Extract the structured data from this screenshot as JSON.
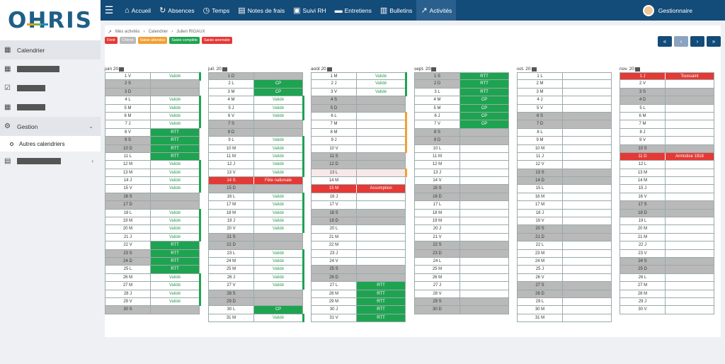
{
  "app": {
    "logo": "OHRIS"
  },
  "topnav": [
    {
      "icon": "home-icon",
      "glyph": "⌂",
      "label": "Accueil",
      "active": false
    },
    {
      "icon": "absences-icon",
      "glyph": "↻",
      "label": "Absences",
      "active": false
    },
    {
      "icon": "clock-icon",
      "glyph": "◷",
      "label": "Temps",
      "active": false
    },
    {
      "icon": "receipt-icon",
      "glyph": "▤",
      "label": "Notes de frais",
      "active": false
    },
    {
      "icon": "tracking-icon",
      "glyph": "▣",
      "label": "Suivi RH",
      "active": false
    },
    {
      "icon": "interview-icon",
      "glyph": "▬",
      "label": "Entretiens",
      "active": false
    },
    {
      "icon": "payslip-icon",
      "glyph": "▥",
      "label": "Bulletins",
      "active": false
    },
    {
      "icon": "activity-icon",
      "glyph": "↗",
      "label": "Activités",
      "active": true
    }
  ],
  "user": {
    "name": "Gestionnaire"
  },
  "sidebar": {
    "calendar_label": "Calendrier",
    "gestion_label": "Gestion",
    "sub_item": "Autres calendriers"
  },
  "breadcrumb": {
    "items": [
      "Mes activités",
      "Calendrier",
      "Julien RIGAUX"
    ]
  },
  "legend": [
    {
      "label": "Férié",
      "color": "#e53935"
    },
    {
      "label": "Chômé",
      "color": "#b9b9b9"
    },
    {
      "label": "Saisie attendue",
      "color": "#f0a035"
    },
    {
      "label": "Saisie complète",
      "color": "#1ea351"
    },
    {
      "label": "Saisie anomalie",
      "color": "#e53935"
    }
  ],
  "nav_buttons": [
    "«",
    "‹",
    "›",
    "»"
  ],
  "months": [
    {
      "title": "juin 20",
      "days": [
        [
          "1 V",
          "Validé",
          "ok",
          "g"
        ],
        [
          "2 S",
          "",
          "we",
          ""
        ],
        [
          "3 D",
          "",
          "we",
          ""
        ],
        [
          "4 L",
          "Validé",
          "ok",
          "g"
        ],
        [
          "5 M",
          "Validé",
          "ok",
          "g"
        ],
        [
          "6 M",
          "Validé",
          "ok",
          "g"
        ],
        [
          "7 J",
          "Validé",
          "ok",
          "g"
        ],
        [
          "8 V",
          "RTT",
          "g",
          ""
        ],
        [
          "9 S",
          "RTT",
          "we g",
          ""
        ],
        [
          "10 D",
          "RTT",
          "we g",
          ""
        ],
        [
          "11 L",
          "RTT",
          "g",
          ""
        ],
        [
          "12 M",
          "Validé",
          "ok",
          "g"
        ],
        [
          "13 M",
          "Validé",
          "ok",
          "g"
        ],
        [
          "14 J",
          "Validé",
          "ok",
          "g"
        ],
        [
          "15 V",
          "Validé",
          "ok",
          "g"
        ],
        [
          "16 S",
          "",
          "we",
          ""
        ],
        [
          "17 D",
          "",
          "we",
          ""
        ],
        [
          "18 L",
          "Validé",
          "ok",
          "g"
        ],
        [
          "19 M",
          "Validé",
          "ok",
          "g"
        ],
        [
          "20 M",
          "Validé",
          "ok",
          "g"
        ],
        [
          "21 J",
          "Validé",
          "ok",
          "g"
        ],
        [
          "22 V",
          "RTT",
          "g",
          ""
        ],
        [
          "23 S",
          "RTT",
          "we g",
          ""
        ],
        [
          "24 D",
          "RTT",
          "we g",
          ""
        ],
        [
          "25 L",
          "RTT",
          "g",
          ""
        ],
        [
          "26 M",
          "Validé",
          "ok",
          "g"
        ],
        [
          "27 M",
          "Validé",
          "ok",
          "g"
        ],
        [
          "28 J",
          "Validé",
          "ok",
          "g"
        ],
        [
          "29 V",
          "Validé",
          "ok",
          "g"
        ],
        [
          "30 S",
          "",
          "we",
          ""
        ]
      ]
    },
    {
      "title": "juil. 20",
      "days": [
        [
          "1 D",
          "",
          "we",
          ""
        ],
        [
          "2 L",
          "CP",
          "g",
          ""
        ],
        [
          "3 M",
          "CP",
          "g",
          ""
        ],
        [
          "4 M",
          "Validé",
          "ok",
          "g"
        ],
        [
          "5 J",
          "Validé",
          "ok",
          "g"
        ],
        [
          "6 V",
          "Validé",
          "ok",
          "g"
        ],
        [
          "7 S",
          "",
          "we",
          ""
        ],
        [
          "8 D",
          "",
          "we",
          ""
        ],
        [
          "9 L",
          "Validé",
          "ok",
          "g"
        ],
        [
          "10 M",
          "Validé",
          "ok",
          "g"
        ],
        [
          "11 M",
          "Validé",
          "ok",
          "g"
        ],
        [
          "12 J",
          "Validé",
          "ok",
          "g"
        ],
        [
          "13 V",
          "Validé",
          "ok",
          "g"
        ],
        [
          "14 S",
          "Fête nationale",
          "red",
          ""
        ],
        [
          "15 D",
          "",
          "we",
          ""
        ],
        [
          "16 L",
          "Validé",
          "ok",
          "g"
        ],
        [
          "17 M",
          "Validé",
          "ok",
          "g"
        ],
        [
          "18 M",
          "Validé",
          "ok",
          "g"
        ],
        [
          "19 J",
          "Validé",
          "ok",
          "g"
        ],
        [
          "20 V",
          "Validé",
          "ok",
          "g"
        ],
        [
          "21 S",
          "",
          "we",
          ""
        ],
        [
          "22 D",
          "",
          "we",
          ""
        ],
        [
          "23 L",
          "Validé",
          "ok",
          "g"
        ],
        [
          "24 M",
          "Validé",
          "ok",
          "g"
        ],
        [
          "25 M",
          "Validé",
          "ok",
          "g"
        ],
        [
          "26 J",
          "Validé",
          "ok",
          "g"
        ],
        [
          "27 V",
          "Validé",
          "ok",
          "g"
        ],
        [
          "28 S",
          "",
          "we",
          ""
        ],
        [
          "29 D",
          "",
          "we",
          ""
        ],
        [
          "30 L",
          "CP",
          "g",
          ""
        ],
        [
          "31 M",
          "Validé",
          "ok",
          "g"
        ]
      ]
    },
    {
      "title": "août 20",
      "days": [
        [
          "1 M",
          "Validé",
          "ok",
          "g"
        ],
        [
          "2 J",
          "Validé",
          "ok",
          "g"
        ],
        [
          "3 V",
          "Validé",
          "ok",
          "g"
        ],
        [
          "4 S",
          "",
          "we",
          ""
        ],
        [
          "5 D",
          "",
          "we",
          ""
        ],
        [
          "6 L",
          "",
          "",
          "o"
        ],
        [
          "7 M",
          "",
          "",
          "o"
        ],
        [
          "8 M",
          "",
          "",
          "o"
        ],
        [
          "9 J",
          "",
          "",
          "o"
        ],
        [
          "10 V",
          "",
          "",
          "o"
        ],
        [
          "11 S",
          "",
          "we",
          ""
        ],
        [
          "12 D",
          "",
          "we",
          ""
        ],
        [
          "13 L",
          "",
          "lr",
          "o"
        ],
        [
          "14 M",
          "",
          "",
          ""
        ],
        [
          "15 M",
          "Assomption",
          "red",
          ""
        ],
        [
          "16 J",
          "",
          "",
          ""
        ],
        [
          "17 V",
          "",
          "",
          ""
        ],
        [
          "18 S",
          "",
          "we",
          ""
        ],
        [
          "19 D",
          "",
          "we",
          ""
        ],
        [
          "20 L",
          "",
          "",
          ""
        ],
        [
          "21 M",
          "",
          "",
          ""
        ],
        [
          "22 M",
          "",
          "",
          ""
        ],
        [
          "23 J",
          "",
          "",
          ""
        ],
        [
          "24 V",
          "",
          "",
          ""
        ],
        [
          "25 S",
          "",
          "we",
          ""
        ],
        [
          "26 D",
          "",
          "we",
          ""
        ],
        [
          "27 L",
          "RTT",
          "g",
          ""
        ],
        [
          "28 M",
          "RTT",
          "g",
          ""
        ],
        [
          "29 M",
          "RTT",
          "g",
          ""
        ],
        [
          "30 J",
          "RTT",
          "g",
          ""
        ],
        [
          "31 V",
          "RTT",
          "g",
          ""
        ]
      ]
    },
    {
      "title": "sept. 20",
      "days": [
        [
          "1 S",
          "RTT",
          "we g",
          ""
        ],
        [
          "2 D",
          "RTT",
          "we g",
          ""
        ],
        [
          "3 L",
          "RTT",
          "g",
          ""
        ],
        [
          "4 M",
          "CP",
          "g",
          ""
        ],
        [
          "5 M",
          "CP",
          "g",
          ""
        ],
        [
          "6 J",
          "CP",
          "g",
          ""
        ],
        [
          "7 V",
          "CP",
          "g",
          ""
        ],
        [
          "8 S",
          "",
          "we",
          ""
        ],
        [
          "9 D",
          "",
          "we",
          ""
        ],
        [
          "10 L",
          "",
          "",
          ""
        ],
        [
          "11 M",
          "",
          "",
          ""
        ],
        [
          "12 M",
          "",
          "",
          ""
        ],
        [
          "13 J",
          "",
          "",
          ""
        ],
        [
          "14 V",
          "",
          "",
          ""
        ],
        [
          "15 S",
          "",
          "we",
          ""
        ],
        [
          "16 D",
          "",
          "we",
          ""
        ],
        [
          "17 L",
          "",
          "",
          ""
        ],
        [
          "18 M",
          "",
          "",
          ""
        ],
        [
          "19 M",
          "",
          "",
          ""
        ],
        [
          "20 J",
          "",
          "",
          ""
        ],
        [
          "21 V",
          "",
          "",
          ""
        ],
        [
          "22 S",
          "",
          "we",
          ""
        ],
        [
          "23 D",
          "",
          "we",
          ""
        ],
        [
          "24 L",
          "",
          "",
          ""
        ],
        [
          "25 M",
          "",
          "",
          ""
        ],
        [
          "26 M",
          "",
          "",
          ""
        ],
        [
          "27 J",
          "",
          "",
          ""
        ],
        [
          "28 V",
          "",
          "",
          ""
        ],
        [
          "29 S",
          "",
          "we",
          ""
        ],
        [
          "30 D",
          "",
          "we",
          ""
        ]
      ]
    },
    {
      "title": "oct. 20",
      "days": [
        [
          "1 L",
          "",
          "",
          ""
        ],
        [
          "2 M",
          "",
          "",
          ""
        ],
        [
          "3 M",
          "",
          "",
          ""
        ],
        [
          "4 J",
          "",
          "",
          ""
        ],
        [
          "5 V",
          "",
          "",
          ""
        ],
        [
          "6 S",
          "",
          "we",
          ""
        ],
        [
          "7 D",
          "",
          "we",
          ""
        ],
        [
          "8 L",
          "",
          "",
          ""
        ],
        [
          "9 M",
          "",
          "",
          ""
        ],
        [
          "10 M",
          "",
          "",
          ""
        ],
        [
          "11 J",
          "",
          "",
          ""
        ],
        [
          "12 V",
          "",
          "",
          ""
        ],
        [
          "13 S",
          "",
          "we",
          ""
        ],
        [
          "14 D",
          "",
          "we",
          ""
        ],
        [
          "15 L",
          "",
          "",
          ""
        ],
        [
          "16 M",
          "",
          "",
          ""
        ],
        [
          "17 M",
          "",
          "",
          ""
        ],
        [
          "18 J",
          "",
          "",
          ""
        ],
        [
          "19 V",
          "",
          "",
          ""
        ],
        [
          "20 S",
          "",
          "we",
          ""
        ],
        [
          "21 D",
          "",
          "we",
          ""
        ],
        [
          "22 L",
          "",
          "",
          ""
        ],
        [
          "23 M",
          "",
          "",
          ""
        ],
        [
          "24 M",
          "",
          "",
          ""
        ],
        [
          "25 J",
          "",
          "",
          ""
        ],
        [
          "26 V",
          "",
          "",
          ""
        ],
        [
          "27 S",
          "",
          "we",
          ""
        ],
        [
          "28 D",
          "",
          "we",
          ""
        ],
        [
          "29 L",
          "",
          "",
          ""
        ],
        [
          "30 M",
          "",
          "",
          ""
        ],
        [
          "31 M",
          "",
          "",
          ""
        ]
      ]
    },
    {
      "title": "nov. 20",
      "days": [
        [
          "1 J",
          "Toussaint",
          "red",
          ""
        ],
        [
          "2 V",
          "",
          "",
          ""
        ],
        [
          "3 S",
          "",
          "we",
          ""
        ],
        [
          "4 D",
          "",
          "we",
          ""
        ],
        [
          "5 L",
          "",
          "",
          ""
        ],
        [
          "6 M",
          "",
          "",
          ""
        ],
        [
          "7 M",
          "",
          "",
          ""
        ],
        [
          "8 J",
          "",
          "",
          ""
        ],
        [
          "9 V",
          "",
          "",
          ""
        ],
        [
          "10 S",
          "",
          "we",
          ""
        ],
        [
          "11 D",
          "Armistice 1918",
          "red",
          ""
        ],
        [
          "12 L",
          "",
          "",
          ""
        ],
        [
          "13 M",
          "",
          "",
          ""
        ],
        [
          "14 M",
          "",
          "",
          ""
        ],
        [
          "15 J",
          "",
          "",
          ""
        ],
        [
          "16 V",
          "",
          "",
          ""
        ],
        [
          "17 S",
          "",
          "we",
          ""
        ],
        [
          "18 D",
          "",
          "we",
          ""
        ],
        [
          "19 L",
          "",
          "",
          ""
        ],
        [
          "20 M",
          "",
          "",
          ""
        ],
        [
          "21 M",
          "",
          "",
          ""
        ],
        [
          "22 J",
          "",
          "",
          ""
        ],
        [
          "23 V",
          "",
          "",
          ""
        ],
        [
          "24 S",
          "",
          "we",
          ""
        ],
        [
          "25 D",
          "",
          "we",
          ""
        ],
        [
          "26 L",
          "",
          "",
          ""
        ],
        [
          "27 M",
          "",
          "",
          ""
        ],
        [
          "28 M",
          "",
          "",
          ""
        ],
        [
          "29 J",
          "",
          "",
          ""
        ],
        [
          "30 V",
          "",
          "",
          ""
        ]
      ]
    }
  ]
}
